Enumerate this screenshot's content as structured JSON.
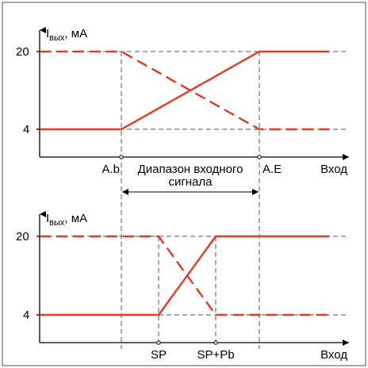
{
  "colors": {
    "signal": "#e53a1f",
    "axis": "#000000",
    "guide": "#555555",
    "frame": "#8a8a8a"
  },
  "top_plot": {
    "y_axis_label_main": "I",
    "y_axis_label_sub": "вых",
    "y_axis_label_unit": ", мА",
    "y_tick_high": "20",
    "y_tick_low": "4",
    "x_label_start": "A.b",
    "x_label_end": "A.E",
    "x_axis_label": "Вход",
    "range_label_line1": "Диапазон входного",
    "range_label_line2": "сигнала"
  },
  "bottom_plot": {
    "y_axis_label_main": "I",
    "y_axis_label_sub": "вых",
    "y_axis_label_unit": ", мА",
    "y_tick_high": "20",
    "y_tick_low": "4",
    "x_label_sp": "SP",
    "x_label_sp_pb": "SP+Pb",
    "x_axis_label": "Вход"
  }
}
